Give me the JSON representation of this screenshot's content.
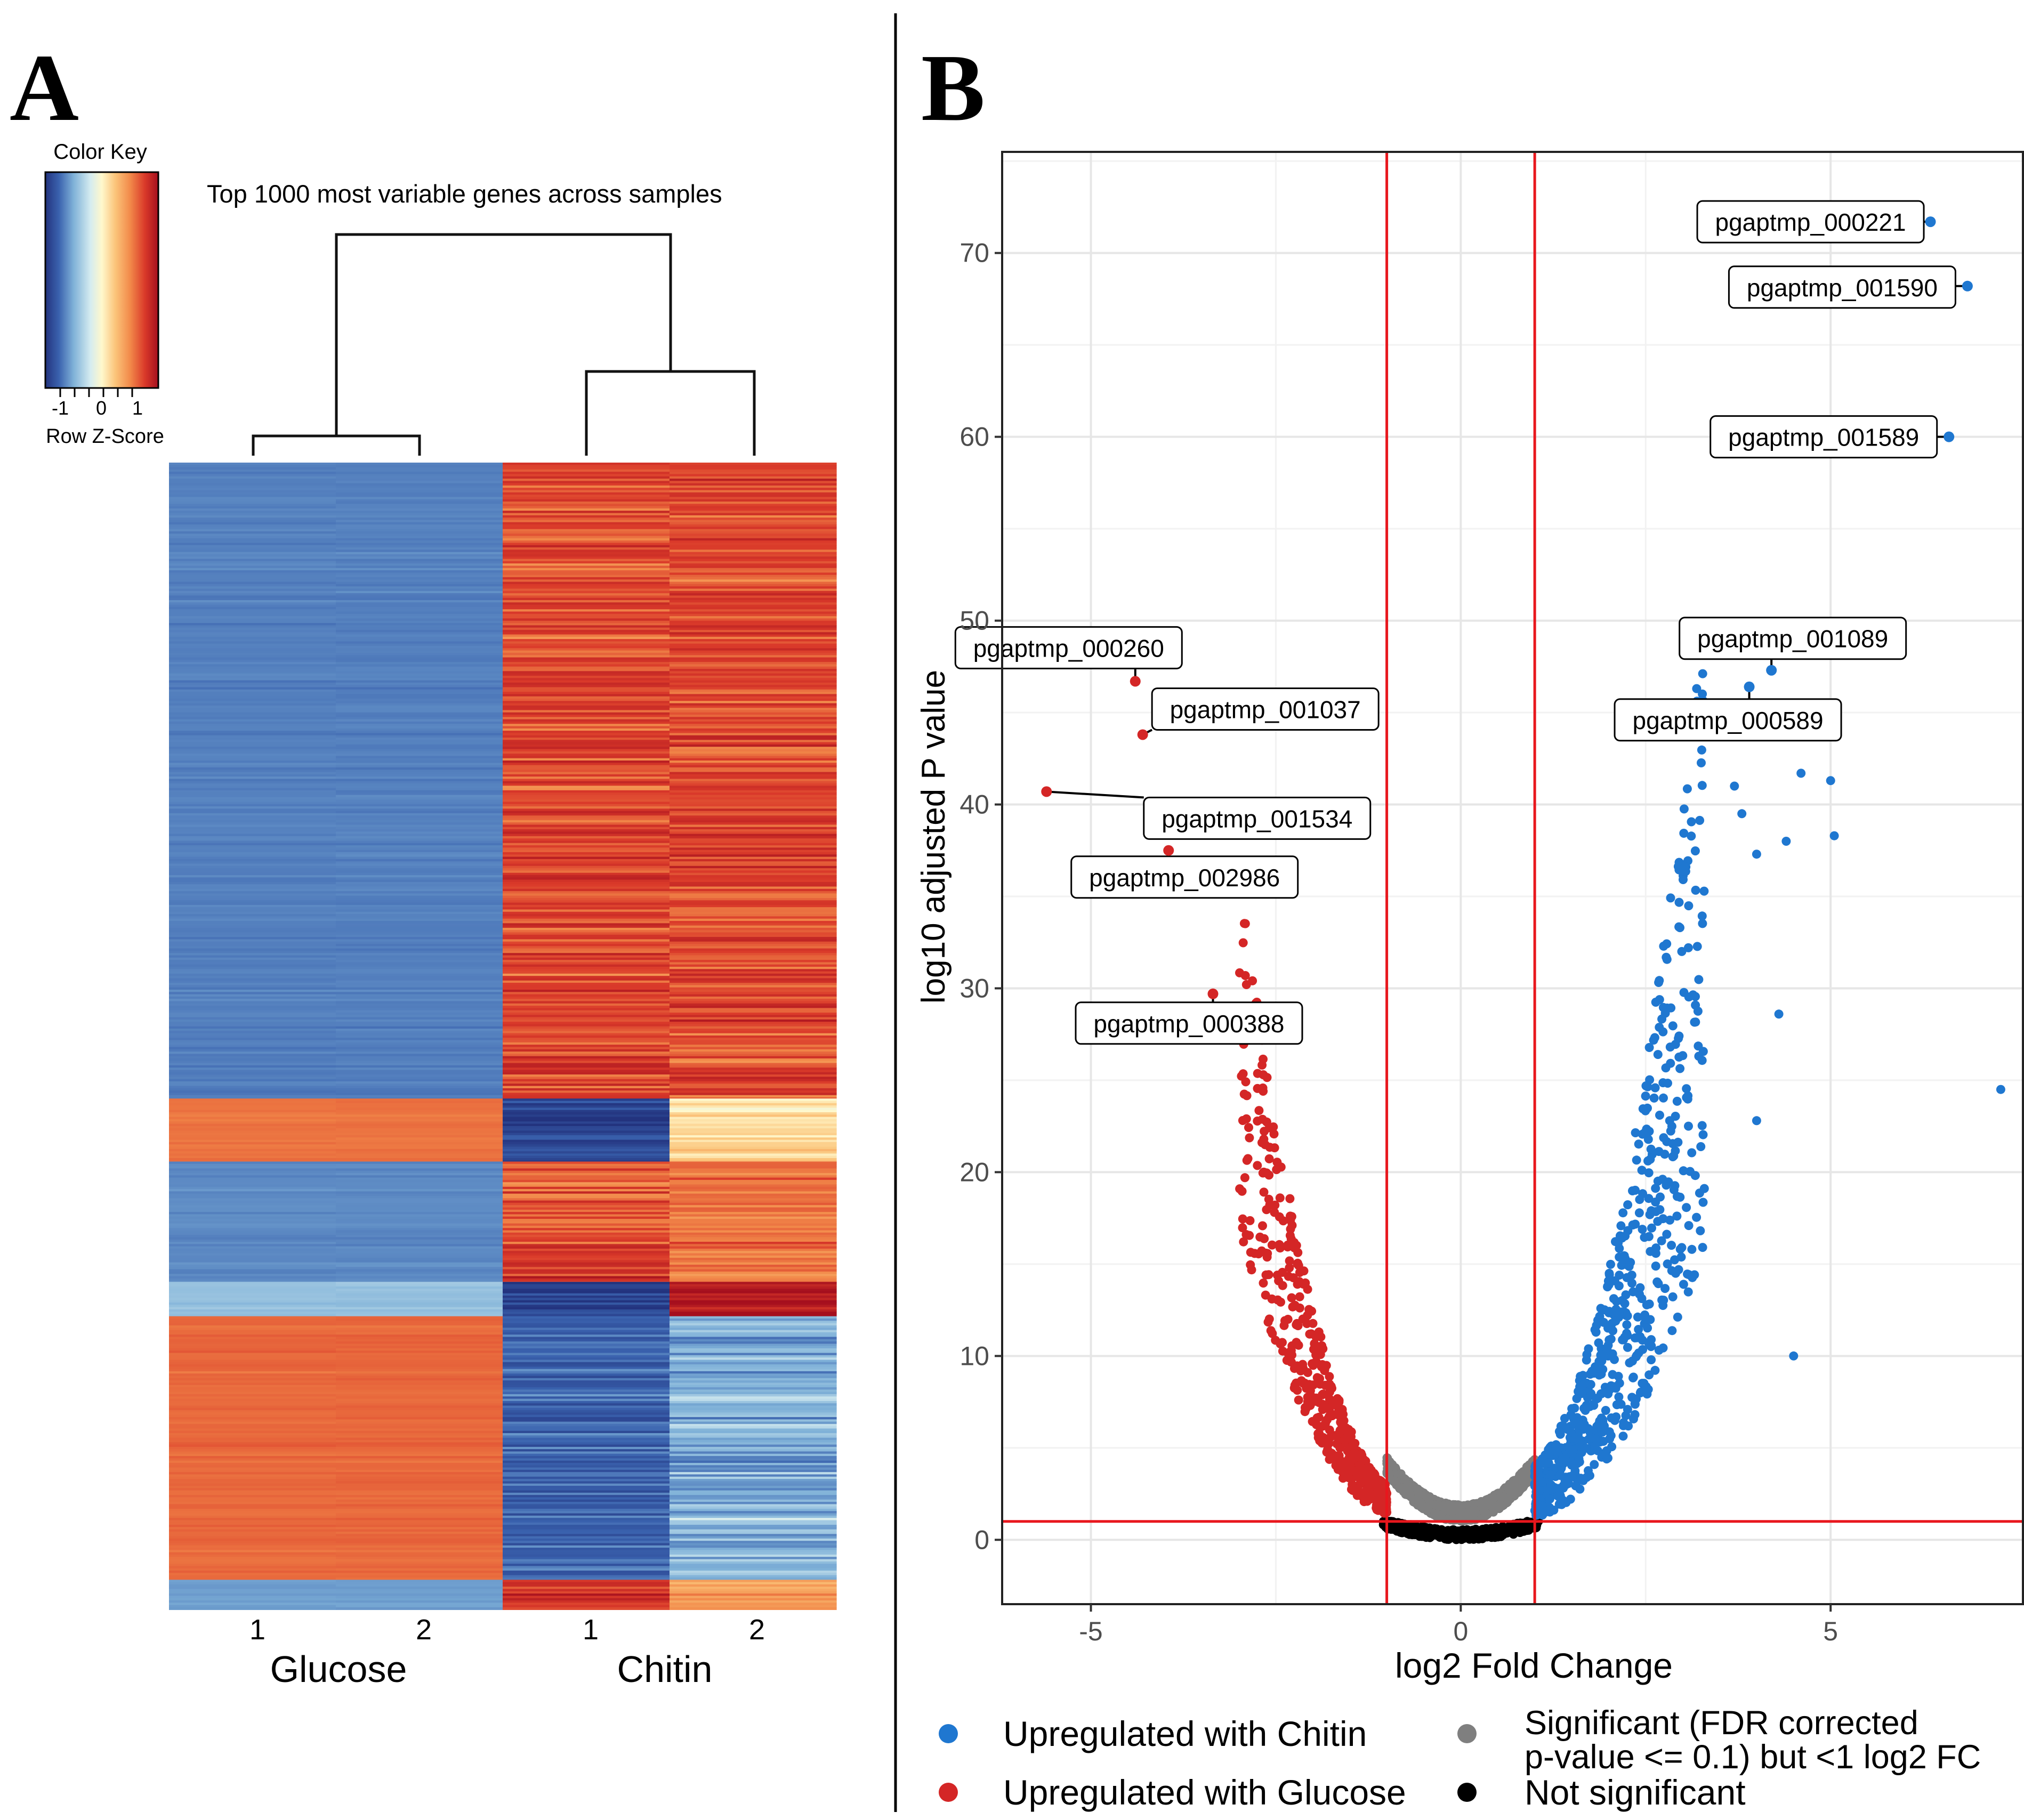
{
  "colors": {
    "chitin": "#1F77D0",
    "glucose": "#D42626",
    "sig_small_fc": "#7F7F7F",
    "not_sig": "#000000",
    "threshold": "#E8171D",
    "heat_low": "#2A3F99",
    "heat_mid": "#FFF5C2",
    "heat_high": "#B5141F"
  },
  "panel_a": {
    "letter": "A",
    "heatmap_title": "Top 1000 most variable genes across samples",
    "color_key": {
      "title": "Color Key",
      "ticks": [
        "-1",
        "0",
        "1"
      ],
      "label": "Row Z-Score"
    },
    "samples": [
      {
        "label": "1",
        "group": "Glucose"
      },
      {
        "label": "2",
        "group": "Glucose"
      },
      {
        "label": "1",
        "group": "Chitin"
      },
      {
        "label": "2",
        "group": "Chitin"
      }
    ],
    "groups": [
      "Glucose",
      "Chitin"
    ]
  },
  "panel_b": {
    "letter": "B",
    "legend": {
      "chitin": "Upregulated with Chitin",
      "glucose": "Upregulated with Glucose",
      "sig_line1": "Significant (FDR corrected",
      "sig_line2": "p-value <= 0.1) but <1 log2 FC",
      "not_sig": "Not significant"
    }
  },
  "chart_data": [
    {
      "type": "heatmap",
      "title": "Top 1000 most variable genes across samples",
      "xlabel": "",
      "ylabel": "",
      "columns": [
        "Glucose 1",
        "Glucose 2",
        "Chitin 1",
        "Chitin 2"
      ],
      "colorbar": {
        "label": "Row Z-Score",
        "range": [
          -1.5,
          1.5
        ],
        "ticks": [
          -1,
          0,
          1
        ]
      },
      "gene_blocks": [
        {
          "genes": 555,
          "glucose": -0.85,
          "chitin_1": 1.0,
          "chitin_2": 1.0
        },
        {
          "genes": 55,
          "glucose": 0.8,
          "chitin_1": -1.3,
          "chitin_2": 0.2
        },
        {
          "genes": 70,
          "glucose": -0.8,
          "chitin_1": 0.9,
          "chitin_2": 0.8
        },
        {
          "genes": 35,
          "glucose": -0.8,
          "chitin_1": 1.1,
          "chitin_2": 0.8
        },
        {
          "genes": 30,
          "glucose": -0.5,
          "chitin_1": -1.3,
          "chitin_2": 1.4
        },
        {
          "genes": 230,
          "glucose": 0.85,
          "chitin_1": -1.0,
          "chitin_2": -0.6
        },
        {
          "genes": 25,
          "glucose": -0.7,
          "chitin_1": 1.1,
          "chitin_2": 0.5
        }
      ],
      "dendrogram": "((Glucose 1, Glucose 2), (Chitin 1, Chitin 2))"
    },
    {
      "type": "scatter",
      "title": "",
      "xlabel": "log2 Fold Change",
      "ylabel": "log10 adjusted P value",
      "xlim": [
        -6.2,
        7.6
      ],
      "ylim": [
        -3.5,
        75.5
      ],
      "xticks": [
        -5,
        0,
        5
      ],
      "yticks": [
        0,
        10,
        20,
        30,
        40,
        50,
        60,
        70
      ],
      "thresholds": {
        "x": [
          -1,
          1
        ],
        "y": 1
      },
      "series": [
        {
          "name": "Upregulated with Chitin",
          "color": "#1F77D0",
          "n_points": 650
        },
        {
          "name": "Upregulated with Glucose",
          "color": "#D42626",
          "n_points": 520
        },
        {
          "name": "Significant (FDR corrected p-value <= 0.1) but <1 log2 FC",
          "color": "#7F7F7F",
          "n_points": 1100
        },
        {
          "name": "Not significant",
          "color": "#000000",
          "n_points": 450
        }
      ],
      "labeled_points": [
        {
          "label": "pgaptmp_000221",
          "x": 6.35,
          "y": 71.7,
          "group": "chitin"
        },
        {
          "label": "pgaptmp_001590",
          "x": 6.85,
          "y": 68.2,
          "group": "chitin"
        },
        {
          "label": "pgaptmp_001589",
          "x": 6.6,
          "y": 60.0,
          "group": "chitin"
        },
        {
          "label": "pgaptmp_001089",
          "x": 4.2,
          "y": 47.3,
          "group": "chitin"
        },
        {
          "label": "pgaptmp_000589",
          "x": 3.9,
          "y": 46.4,
          "group": "chitin"
        },
        {
          "label": "pgaptmp_000260",
          "x": -4.4,
          "y": 46.7,
          "group": "glucose"
        },
        {
          "label": "pgaptmp_001037",
          "x": -4.3,
          "y": 43.8,
          "group": "glucose"
        },
        {
          "label": "pgaptmp_001534",
          "x": -5.6,
          "y": 40.7,
          "group": "glucose"
        },
        {
          "label": "pgaptmp_002986",
          "x": -3.95,
          "y": 37.5,
          "group": "glucose"
        },
        {
          "label": "pgaptmp_000388",
          "x": -3.35,
          "y": 29.7,
          "group": "glucose"
        }
      ],
      "extra_points": [
        {
          "x": 4.6,
          "y": 41.7
        },
        {
          "x": 5.0,
          "y": 41.3
        },
        {
          "x": 5.05,
          "y": 38.3
        },
        {
          "x": 4.4,
          "y": 38.0
        },
        {
          "x": 3.7,
          "y": 41.0
        },
        {
          "x": 3.8,
          "y": 39.5
        },
        {
          "x": 4.0,
          "y": 37.3
        },
        {
          "x": 4.3,
          "y": 28.6
        },
        {
          "x": 7.3,
          "y": 24.5
        },
        {
          "x": 4.0,
          "y": 22.8
        },
        {
          "x": 4.5,
          "y": 10.0
        }
      ]
    }
  ]
}
